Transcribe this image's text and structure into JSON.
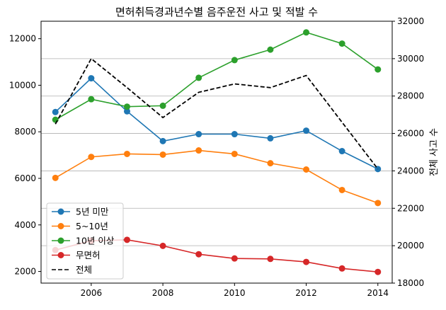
{
  "chart_data": {
    "type": "line",
    "title": "면허취득경과년수별 음주운전 사고 및 적발 수",
    "xlabel": "",
    "ylabel": "",
    "y2label": "전체 사고 수",
    "x": [
      2005,
      2006,
      2007,
      2008,
      2009,
      2010,
      2011,
      2012,
      2013,
      2014
    ],
    "xlim": [
      2004.6,
      2014.4
    ],
    "ylim": [
      1500,
      12750
    ],
    "y2lim": [
      18000,
      32000
    ],
    "xticks": [
      "2006",
      "2008",
      "2010",
      "2012",
      "2014"
    ],
    "yticks": [
      "2000",
      "4000",
      "6000",
      "8000",
      "10000",
      "12000"
    ],
    "y2ticks": [
      "18000",
      "20000",
      "22000",
      "24000",
      "26000",
      "28000",
      "30000",
      "32000"
    ],
    "grid": "horizontal lines on right axis",
    "legend_position": "lower-left",
    "series": [
      {
        "name": "5년 미만",
        "axis": "left",
        "color": "#1f77b4",
        "style": "line-marker",
        "values": [
          8850,
          10300,
          8880,
          7600,
          7900,
          7900,
          7720,
          8050,
          7170,
          6400
        ]
      },
      {
        "name": "5~10년",
        "axis": "left",
        "color": "#ff7f0e",
        "style": "line-marker",
        "values": [
          6020,
          6920,
          7050,
          7020,
          7200,
          7050,
          6650,
          6380,
          5500,
          4940
        ]
      },
      {
        "name": "10년 이상",
        "axis": "left",
        "color": "#2ca02c",
        "style": "line-marker",
        "values": [
          8520,
          9400,
          9080,
          9120,
          10320,
          11080,
          11530,
          12270,
          11790,
          10680
        ]
      },
      {
        "name": "무면허",
        "axis": "left",
        "color": "#d62728",
        "style": "line-marker",
        "values": [
          2920,
          3320,
          3360,
          3100,
          2740,
          2560,
          2540,
          2410,
          2130,
          1980
        ]
      },
      {
        "name": "전체",
        "axis": "right",
        "color": "#000000",
        "style": "dashed",
        "values": [
          26500,
          30000,
          28450,
          26850,
          28200,
          28650,
          28450,
          29100,
          26600,
          24100
        ]
      }
    ]
  }
}
